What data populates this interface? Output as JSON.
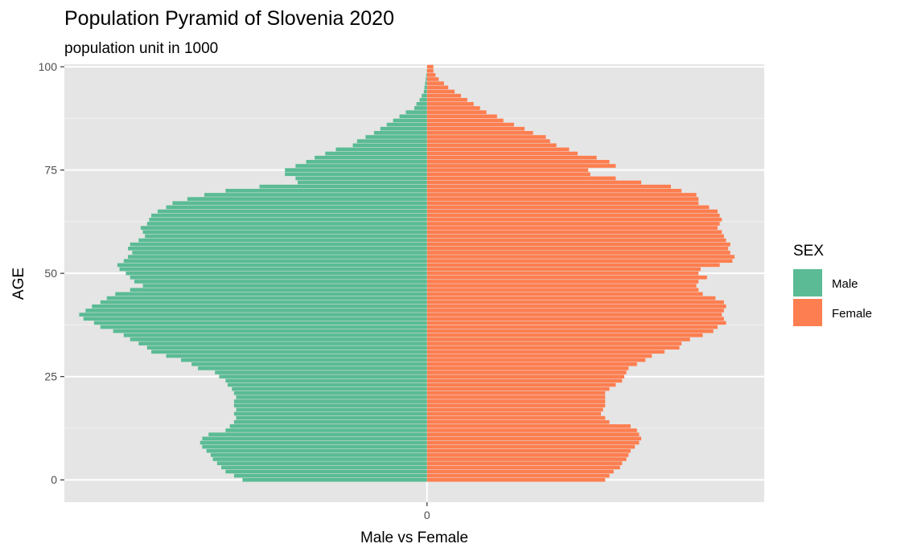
{
  "chart_data": {
    "type": "bar",
    "orientation": "horizontal",
    "title": "Population Pyramid of Slovenia 2020",
    "subtitle": "population unit in 1000",
    "xlabel": "Male vs Female",
    "ylabel": "AGE",
    "x_ticks": [
      0
    ],
    "y_ticks": [
      0,
      25,
      50,
      75,
      100
    ],
    "ylim": [
      -5.4,
      100.6
    ],
    "xlim": [
      -17.1,
      15.9
    ],
    "grid": true,
    "legend": {
      "title": "SEX",
      "position": "right"
    },
    "ages": [
      0,
      1,
      2,
      3,
      4,
      5,
      6,
      7,
      8,
      9,
      10,
      11,
      12,
      13,
      14,
      15,
      16,
      17,
      18,
      19,
      20,
      21,
      22,
      23,
      24,
      25,
      26,
      27,
      28,
      29,
      30,
      31,
      32,
      33,
      34,
      35,
      36,
      37,
      38,
      39,
      40,
      41,
      42,
      43,
      44,
      45,
      46,
      47,
      48,
      49,
      50,
      51,
      52,
      53,
      54,
      55,
      56,
      57,
      58,
      59,
      60,
      61,
      62,
      63,
      64,
      65,
      66,
      67,
      68,
      69,
      70,
      71,
      72,
      73,
      74,
      75,
      76,
      77,
      78,
      79,
      80,
      81,
      82,
      83,
      84,
      85,
      86,
      87,
      88,
      89,
      90,
      91,
      92,
      93,
      94,
      95,
      96,
      97,
      98,
      99,
      100
    ],
    "series": [
      {
        "name": "Male",
        "color": "#5abb94",
        "values": [
          -8.7,
          -9.1,
          -9.5,
          -9.7,
          -9.9,
          -10.1,
          -10.2,
          -10.4,
          -10.6,
          -10.7,
          -10.6,
          -10.3,
          -9.5,
          -9.3,
          -9.1,
          -9.0,
          -9.1,
          -9.0,
          -9.1,
          -9.1,
          -9.0,
          -9.1,
          -9.2,
          -9.4,
          -9.5,
          -9.8,
          -10.0,
          -10.8,
          -11.1,
          -11.6,
          -12.3,
          -13.0,
          -13.2,
          -13.6,
          -14.0,
          -14.3,
          -14.8,
          -15.4,
          -15.7,
          -16.2,
          -16.4,
          -16.1,
          -15.8,
          -15.4,
          -15.1,
          -14.7,
          -14.0,
          -13.4,
          -13.8,
          -14.0,
          -14.2,
          -14.5,
          -14.6,
          -14.3,
          -14.1,
          -13.9,
          -14.1,
          -14.0,
          -13.6,
          -13.3,
          -13.4,
          -13.5,
          -13.2,
          -13.1,
          -13.0,
          -12.7,
          -12.3,
          -12.0,
          -11.3,
          -10.5,
          -9.5,
          -7.9,
          -6.1,
          -6.2,
          -6.7,
          -6.7,
          -6.2,
          -5.7,
          -5.3,
          -4.8,
          -4.3,
          -3.5,
          -3.3,
          -2.9,
          -2.5,
          -2.2,
          -1.9,
          -1.6,
          -1.3,
          -1.0,
          -0.6,
          -0.5,
          -0.35,
          -0.25,
          -0.15,
          -0.12,
          -0.09,
          -0.06,
          -0.04,
          -0.02,
          -0.01
        ]
      },
      {
        "name": "Female",
        "color": "#fd7e50",
        "values": [
          8.4,
          8.6,
          8.8,
          9.1,
          9.2,
          9.4,
          9.5,
          9.6,
          9.8,
          10.0,
          10.1,
          10.0,
          9.9,
          9.6,
          8.6,
          8.4,
          8.2,
          8.3,
          8.4,
          8.4,
          8.4,
          8.4,
          8.6,
          8.9,
          9.2,
          9.3,
          9.4,
          9.5,
          9.9,
          10.3,
          10.6,
          11.2,
          11.9,
          12.0,
          12.4,
          13.0,
          13.5,
          13.7,
          14.1,
          14.0,
          13.9,
          14.0,
          14.1,
          14.0,
          13.6,
          13.0,
          12.8,
          12.7,
          12.8,
          13.2,
          12.8,
          12.9,
          13.8,
          14.4,
          14.5,
          14.3,
          14.2,
          14.3,
          14.1,
          14.0,
          13.9,
          13.7,
          13.8,
          13.9,
          13.8,
          13.7,
          13.3,
          12.8,
          12.8,
          12.7,
          12.0,
          11.5,
          10.1,
          8.9,
          7.7,
          7.6,
          8.9,
          8.6,
          8.0,
          7.1,
          6.7,
          6.1,
          5.8,
          5.6,
          5.0,
          4.6,
          4.1,
          3.6,
          3.3,
          2.8,
          2.5,
          2.2,
          1.9,
          1.6,
          1.3,
          1.0,
          0.8,
          0.55,
          0.4,
          0.3,
          0.3
        ]
      }
    ]
  }
}
